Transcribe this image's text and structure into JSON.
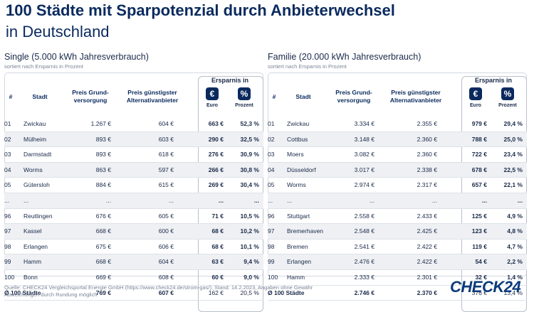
{
  "title_line1": "100 Städte mit Sparpotenzial durch Anbieterwechsel",
  "title_line2": "in Deutschland",
  "headers": {
    "num": "#",
    "city": "Stadt",
    "grund": "Preis Grund-\nversorgung",
    "alt": "Preis günstigster\nAlternativanbieter",
    "ersparnis": "Ersparnis in",
    "euro_icon": "€",
    "euro_label": "Euro",
    "pct_icon": "%",
    "pct_label": "Prozent"
  },
  "panels": [
    {
      "title": "Single (5.000 kWh Jahresverbrauch)",
      "subtitle": "sortiert nach Ersparnis in Prozent",
      "rows": [
        [
          "01",
          "Zwickau",
          "1.267 €",
          "604 €",
          "663 €",
          "52,3 %"
        ],
        [
          "02",
          "Mülheim",
          "893 €",
          "603 €",
          "290 €",
          "32,5 %"
        ],
        [
          "03",
          "Darmstadt",
          "893 €",
          "618 €",
          "276 €",
          "30,9 %"
        ],
        [
          "04",
          "Worms",
          "863 €",
          "597 €",
          "266 €",
          "30,8 %"
        ],
        [
          "05",
          "Gütersloh",
          "884 €",
          "615 €",
          "269 €",
          "30,4 %"
        ],
        [
          "...",
          "...",
          "...",
          "...",
          "...",
          "..."
        ],
        [
          "96",
          "Reutlingen",
          "676 €",
          "605 €",
          "71 €",
          "10,5 %"
        ],
        [
          "97",
          "Kassel",
          "668 €",
          "600 €",
          "68 €",
          "10,2 %"
        ],
        [
          "98",
          "Erlangen",
          "675 €",
          "606 €",
          "68 €",
          "10,1 %"
        ],
        [
          "99",
          "Hamm",
          "668 €",
          "604 €",
          "63 €",
          "9,4 %"
        ],
        [
          "100",
          "Bonn",
          "669 €",
          "608 €",
          "60 €",
          "9,0 %"
        ]
      ],
      "total": [
        "Ø 100 Städte",
        "",
        "769 €",
        "607 €",
        "162 €",
        "20,5 %"
      ]
    },
    {
      "title": "Familie (20.000 kWh Jahresverbrauch)",
      "subtitle": "sortiert nach Ersparnis in Prozent",
      "rows": [
        [
          "01",
          "Zwickau",
          "3.334 €",
          "2.355 €",
          "979 €",
          "29,4 %"
        ],
        [
          "02",
          "Cottbus",
          "3.148 €",
          "2.360 €",
          "788 €",
          "25,0 %"
        ],
        [
          "03",
          "Moers",
          "3.082 €",
          "2.360 €",
          "722 €",
          "23,4 %"
        ],
        [
          "04",
          "Düsseldorf",
          "3.017 €",
          "2.338 €",
          "678 €",
          "22,5 %"
        ],
        [
          "05",
          "Worms",
          "2.974 €",
          "2.317 €",
          "657 €",
          "22,1 %"
        ],
        [
          "...",
          "...",
          "...",
          "...",
          "...",
          "..."
        ],
        [
          "96",
          "Stuttgart",
          "2.558 €",
          "2.433 €",
          "125 €",
          "4,9 %"
        ],
        [
          "97",
          "Bremerhaven",
          "2.548 €",
          "2.425 €",
          "123 €",
          "4,8 %"
        ],
        [
          "98",
          "Bremen",
          "2.541 €",
          "2.422 €",
          "119 €",
          "4,7 %"
        ],
        [
          "99",
          "Erlangen",
          "2.476 €",
          "2.422 €",
          "54 €",
          "2,2 %"
        ],
        [
          "100",
          "Hamm",
          "2.333 €",
          "2.301 €",
          "32 €",
          "1,4 %"
        ]
      ],
      "total": [
        "Ø 100 Städte",
        "",
        "2.746 €",
        "2.370 €",
        "376 €",
        "13,4 %"
      ]
    }
  ],
  "footer_line1": "Quelle: CHECK24 Vergleichsportal Energie GmbH (https://www.check24.de/strom-gas/); Stand: 14.2.2023, Angaben ohne Gewähr",
  "footer_line2": "Abweichungen durch Rundung möglich",
  "logo": "CHECK24"
}
